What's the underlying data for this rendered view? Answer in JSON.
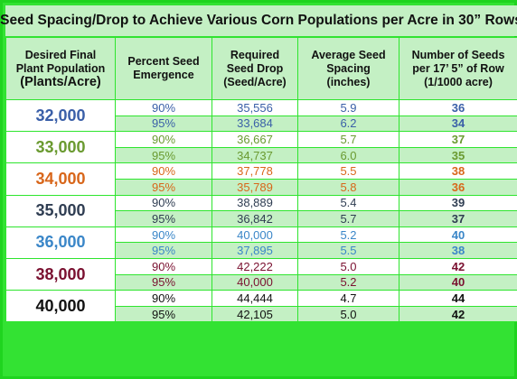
{
  "title": "Seed Spacing/Drop to Achieve Various Corn Populations per Acre in 30” Rows",
  "headers": {
    "col1_line1": "Desired Final",
    "col1_line2": "Plant Population",
    "col1_line3": "(Plants/Acre)",
    "col2_line1": "Percent Seed",
    "col2_line2": "Emergence",
    "col3_line1": "Required",
    "col3_line2": "Seed Drop",
    "col3_line3": "(Seed/Acre)",
    "col4_line1": "Average Seed",
    "col4_line2": "Spacing",
    "col4_line3": "(inches)",
    "col5_line1": "Number of Seeds",
    "col5_line2": "per 17’ 5” of Row",
    "col5_line3": "(1/1000 acre)"
  },
  "groups": [
    {
      "population": "32,000",
      "color": "#3a5fa8",
      "rows": [
        {
          "emergence": "90%",
          "drop": "35,556",
          "spacing": "5.9",
          "seeds": "36"
        },
        {
          "emergence": "95%",
          "drop": "33,684",
          "spacing": "6.2",
          "seeds": "34"
        }
      ]
    },
    {
      "population": "33,000",
      "color": "#6a9a30",
      "rows": [
        {
          "emergence": "90%",
          "drop": "36,667",
          "spacing": "5.7",
          "seeds": "37"
        },
        {
          "emergence": "95%",
          "drop": "34,737",
          "spacing": "6.0",
          "seeds": "35"
        }
      ]
    },
    {
      "population": "34,000",
      "color": "#d8661a",
      "rows": [
        {
          "emergence": "90%",
          "drop": "37,778",
          "spacing": "5.5",
          "seeds": "38"
        },
        {
          "emergence": "95%",
          "drop": "35,789",
          "spacing": "5.8",
          "seeds": "36"
        }
      ]
    },
    {
      "population": "35,000",
      "color": "#2f3d52",
      "rows": [
        {
          "emergence": "90%",
          "drop": "38,889",
          "spacing": "5.4",
          "seeds": "39"
        },
        {
          "emergence": "95%",
          "drop": "36,842",
          "spacing": "5.7",
          "seeds": "37"
        }
      ]
    },
    {
      "population": "36,000",
      "color": "#3a86c8",
      "rows": [
        {
          "emergence": "90%",
          "drop": "40,000",
          "spacing": "5.2",
          "seeds": "40"
        },
        {
          "emergence": "95%",
          "drop": "37,895",
          "spacing": "5.5",
          "seeds": "38"
        }
      ]
    },
    {
      "population": "38,000",
      "color": "#7a1030",
      "rows": [
        {
          "emergence": "90%",
          "drop": "42,222",
          "spacing": "5.0",
          "seeds": "42"
        },
        {
          "emergence": "95%",
          "drop": "40,000",
          "spacing": "5.2",
          "seeds": "40"
        }
      ]
    },
    {
      "population": "40,000",
      "color": "#111111",
      "rows": [
        {
          "emergence": "90%",
          "drop": "44,444",
          "spacing": "4.7",
          "seeds": "44"
        },
        {
          "emergence": "95%",
          "drop": "42,105",
          "spacing": "5.0",
          "seeds": "42"
        }
      ]
    }
  ]
}
